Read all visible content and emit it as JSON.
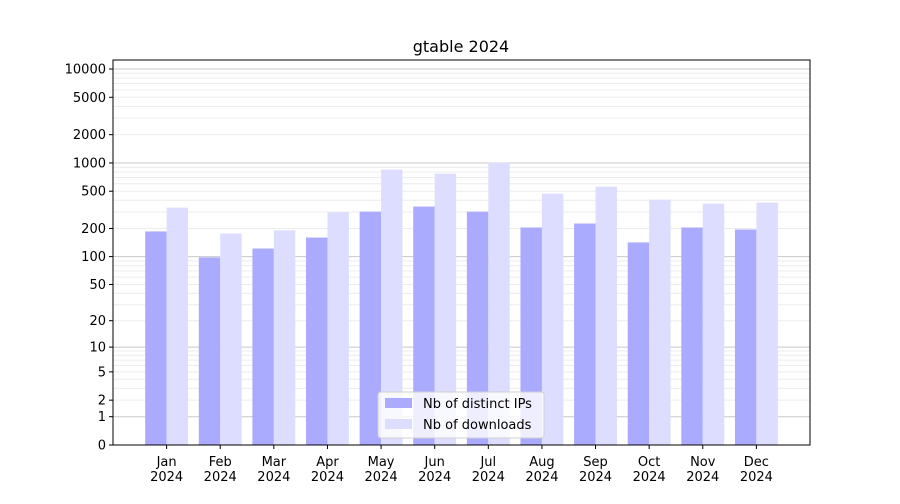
{
  "chart_data": {
    "type": "bar",
    "title": "gtable 2024",
    "xlabel": "",
    "ylabel": "",
    "yscale": "symlog (log10(1+y))",
    "ylim": [
      0,
      13000
    ],
    "categories": [
      "Jan\n2024",
      "Feb\n2024",
      "Mar\n2024",
      "Apr\n2024",
      "May\n2024",
      "Jun\n2024",
      "Jul\n2024",
      "Aug\n2024",
      "Sep\n2024",
      "Oct\n2024",
      "Nov\n2024",
      "Dec\n2024"
    ],
    "yticks": [
      0,
      1,
      2,
      5,
      10,
      20,
      50,
      100,
      200,
      500,
      1000,
      2000,
      5000,
      10000
    ],
    "grid": true,
    "legend_placement": "lower center",
    "series": [
      {
        "name": "Nb of distinct IPs",
        "color": "#aaaaff",
        "values": [
          186,
          98,
          122,
          160,
          303,
          343,
          303,
          205,
          226,
          142,
          205,
          195
        ]
      },
      {
        "name": "Nb of downloads",
        "color": "#ddddff",
        "values": [
          334,
          177,
          191,
          298,
          849,
          769,
          1003,
          471,
          560,
          407,
          369,
          378
        ]
      }
    ]
  }
}
